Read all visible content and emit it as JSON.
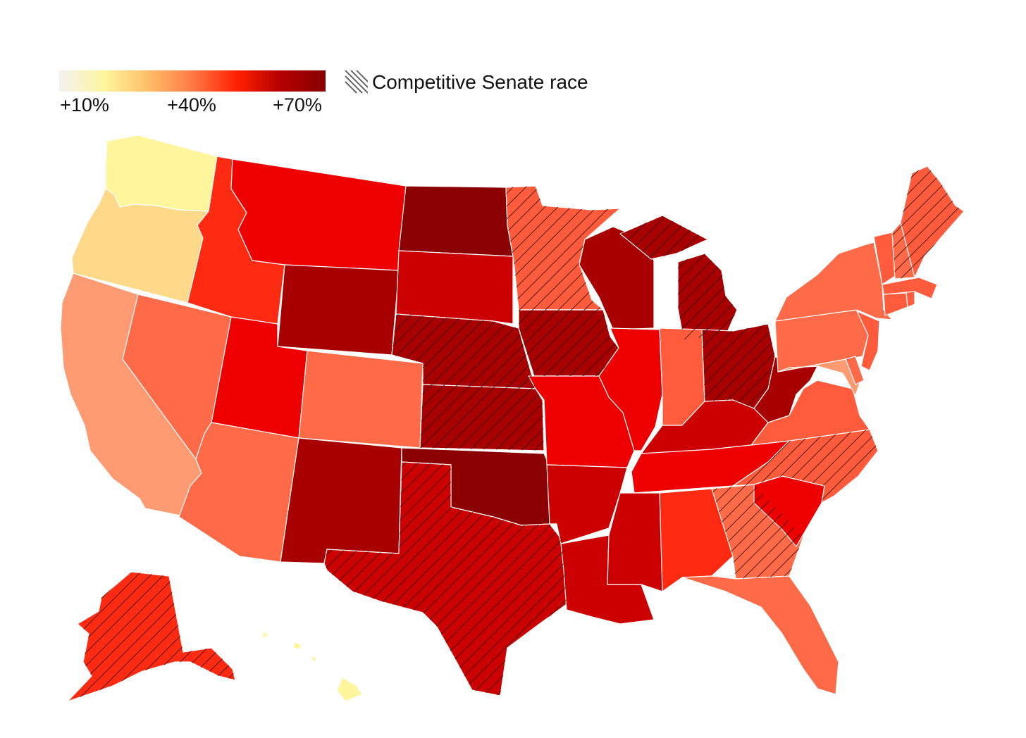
{
  "legend": {
    "ticks": [
      "+10%",
      "+40%",
      "+70%"
    ],
    "gradient_colors": [
      "#f2f2f2",
      "#fff59d",
      "#ffc069",
      "#ff7a45",
      "#ff1f00",
      "#b50000",
      "#870000"
    ],
    "hatch_label": "Competitive Senate race",
    "hatch_icon": "diagonal-hatch-icon"
  },
  "map": {
    "type": "choropleth",
    "region": "United States",
    "scale_colors": {
      "level_1": "#fff59d",
      "level_2": "#ffd98a",
      "level_3": "#ff9b73",
      "level_4": "#ff6a48",
      "level_5": "#ff5b3c",
      "level_6": "#ff2a12",
      "level_7": "#ee0000",
      "level_8": "#cc0000",
      "level_9": "#a80000",
      "level_10": "#8b0000"
    },
    "states": [
      {
        "name": "Washington",
        "level": 1,
        "competitive": false
      },
      {
        "name": "Oregon",
        "level": 2,
        "competitive": false
      },
      {
        "name": "California",
        "level": 3,
        "competitive": false
      },
      {
        "name": "Nevada",
        "level": 4,
        "competitive": false
      },
      {
        "name": "Idaho",
        "level": 6,
        "competitive": false
      },
      {
        "name": "Montana",
        "level": 7,
        "competitive": false
      },
      {
        "name": "Wyoming",
        "level": 9,
        "competitive": false
      },
      {
        "name": "Utah",
        "level": 7,
        "competitive": false
      },
      {
        "name": "Arizona",
        "level": 4,
        "competitive": false
      },
      {
        "name": "Colorado",
        "level": 4,
        "competitive": false
      },
      {
        "name": "New Mexico",
        "level": 9,
        "competitive": false
      },
      {
        "name": "North Dakota",
        "level": 10,
        "competitive": false
      },
      {
        "name": "South Dakota",
        "level": 8,
        "competitive": false
      },
      {
        "name": "Nebraska",
        "level": 9,
        "competitive": true
      },
      {
        "name": "Kansas",
        "level": 9,
        "competitive": true
      },
      {
        "name": "Oklahoma",
        "level": 10,
        "competitive": false
      },
      {
        "name": "Texas",
        "level": 8,
        "competitive": true
      },
      {
        "name": "Minnesota",
        "level": 5,
        "competitive": true
      },
      {
        "name": "Iowa",
        "level": 9,
        "competitive": true
      },
      {
        "name": "Missouri",
        "level": 7,
        "competitive": false
      },
      {
        "name": "Arkansas",
        "level": 8,
        "competitive": false
      },
      {
        "name": "Louisiana",
        "level": 8,
        "competitive": false
      },
      {
        "name": "Wisconsin",
        "level": 9,
        "competitive": false
      },
      {
        "name": "Michigan",
        "level": 9,
        "competitive": true
      },
      {
        "name": "Illinois",
        "level": 7,
        "competitive": false
      },
      {
        "name": "Indiana",
        "level": 5,
        "competitive": false
      },
      {
        "name": "Ohio",
        "level": 9,
        "competitive": true
      },
      {
        "name": "Kentucky",
        "level": 8,
        "competitive": false
      },
      {
        "name": "Tennessee",
        "level": 7,
        "competitive": false
      },
      {
        "name": "Mississippi",
        "level": 8,
        "competitive": false
      },
      {
        "name": "Alabama",
        "level": 6,
        "competitive": false
      },
      {
        "name": "Georgia",
        "level": 4,
        "competitive": true
      },
      {
        "name": "Florida",
        "level": 4,
        "competitive": false
      },
      {
        "name": "South Carolina",
        "level": 7,
        "competitive": false
      },
      {
        "name": "North Carolina",
        "level": 5,
        "competitive": true
      },
      {
        "name": "Virginia",
        "level": 5,
        "competitive": false
      },
      {
        "name": "West Virginia",
        "level": 9,
        "competitive": false
      },
      {
        "name": "Pennsylvania",
        "level": 4,
        "competitive": false
      },
      {
        "name": "New York",
        "level": 4,
        "competitive": false
      },
      {
        "name": "Maryland",
        "level": 3,
        "competitive": false
      },
      {
        "name": "Delaware",
        "level": 4,
        "competitive": false
      },
      {
        "name": "New Jersey",
        "level": 5,
        "competitive": false
      },
      {
        "name": "Connecticut",
        "level": 5,
        "competitive": false
      },
      {
        "name": "Rhode Island",
        "level": 5,
        "competitive": false
      },
      {
        "name": "Massachusetts",
        "level": 5,
        "competitive": false
      },
      {
        "name": "Vermont",
        "level": 5,
        "competitive": false
      },
      {
        "name": "New Hampshire",
        "level": 4,
        "competitive": true
      },
      {
        "name": "Maine",
        "level": 5,
        "competitive": true
      },
      {
        "name": "Alaska",
        "level": 6,
        "competitive": true
      },
      {
        "name": "Hawaii",
        "level": 1,
        "competitive": false
      }
    ]
  }
}
